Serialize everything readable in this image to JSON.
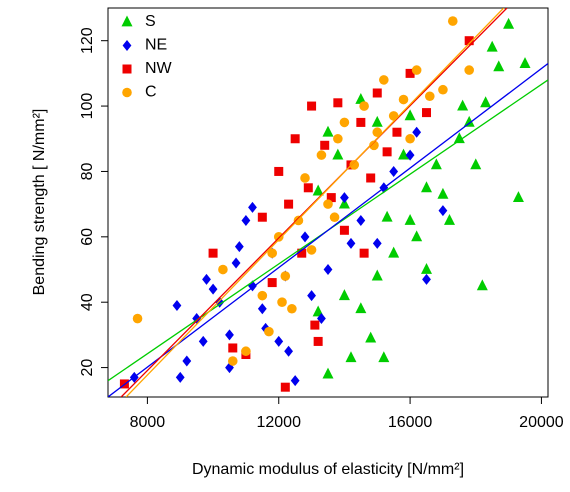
{
  "chart_data": {
    "type": "scatter",
    "x_label": "Dynamic modulus of elasticity [N/mm²]",
    "y_label": "Bending strength [ N/mm²]",
    "xlim": [
      6800,
      20200
    ],
    "ylim": [
      11,
      130
    ],
    "xticks": [
      8000,
      12000,
      16000,
      20000
    ],
    "yticks": [
      20,
      40,
      60,
      80,
      100,
      120
    ],
    "legend": "top-left",
    "series": [
      {
        "name": "S",
        "color": "#00cc00",
        "marker": "triangle",
        "x": [
          13500,
          14200,
          15200,
          18200,
          19300,
          19000,
          19500,
          18500,
          17800,
          17500,
          16500,
          16000,
          15500,
          15000,
          14500,
          14000,
          13200,
          14800,
          16200,
          17000,
          16800,
          15800,
          15000,
          14500,
          13500,
          13200,
          14000,
          16500,
          17200,
          18000,
          18300,
          18700,
          15300,
          16000,
          13800,
          17600
        ],
        "y": [
          18,
          23,
          23,
          45,
          72,
          125,
          113,
          118,
          95,
          90,
          75,
          65,
          55,
          48,
          38,
          42,
          37,
          29,
          60,
          73,
          82,
          85,
          95,
          102,
          92,
          74,
          70,
          50,
          65,
          82,
          101,
          112,
          66,
          97,
          85,
          100
        ],
        "fit": {
          "x": [
            6800,
            20200
          ],
          "y": [
            16,
            108
          ]
        }
      },
      {
        "name": "NE",
        "color": "#0000ee",
        "marker": "diamond",
        "x": [
          7600,
          8900,
          9000,
          9200,
          9500,
          9800,
          10200,
          10500,
          10500,
          11000,
          10800,
          11200,
          11500,
          11800,
          12000,
          12300,
          12500,
          12800,
          13000,
          13500,
          14000,
          14500,
          15000,
          15500,
          16000,
          16500,
          17000,
          9700,
          10700,
          11600,
          12200,
          13300,
          14200,
          15200,
          16200,
          11200,
          10000
        ],
        "y": [
          17,
          39,
          17,
          22,
          35,
          47,
          40,
          30,
          20,
          65,
          57,
          45,
          38,
          55,
          28,
          25,
          16,
          60,
          42,
          50,
          72,
          65,
          58,
          80,
          85,
          47,
          68,
          28,
          52,
          32,
          48,
          35,
          58,
          75,
          92,
          69,
          44
        ],
        "fit": {
          "x": [
            6800,
            20200
          ],
          "y": [
            11,
            113
          ]
        }
      },
      {
        "name": "NW",
        "color": "#ee0000",
        "marker": "square",
        "x": [
          7300,
          10000,
          10600,
          11500,
          11800,
          12000,
          12200,
          12500,
          12700,
          13000,
          13200,
          13400,
          13600,
          13800,
          14000,
          14200,
          14500,
          14800,
          15000,
          15300,
          15600,
          16000,
          16500,
          17800,
          12300,
          13100,
          11000,
          14600,
          12900
        ],
        "y": [
          15,
          55,
          26,
          66,
          46,
          80,
          14,
          90,
          55,
          100,
          28,
          88,
          72,
          101,
          62,
          82,
          95,
          78,
          104,
          86,
          92,
          110,
          98,
          120,
          70,
          33,
          24,
          55,
          75
        ],
        "fit": {
          "x": [
            7200,
            18950
          ],
          "y": [
            11,
            130
          ]
        }
      },
      {
        "name": "C",
        "color": "#ffa500",
        "marker": "circle",
        "x": [
          7700,
          10300,
          10600,
          11000,
          11500,
          11700,
          12000,
          12200,
          12400,
          12600,
          12800,
          13000,
          13300,
          13500,
          13800,
          14000,
          14300,
          14600,
          14900,
          15200,
          15500,
          15800,
          16200,
          16600,
          17000,
          17300,
          17800,
          12100,
          13700,
          15000,
          16000,
          11800
        ],
        "y": [
          35,
          50,
          22,
          25,
          42,
          31,
          60,
          48,
          38,
          65,
          78,
          56,
          85,
          70,
          90,
          95,
          82,
          100,
          88,
          108,
          97,
          102,
          111,
          103,
          105,
          126,
          111,
          40,
          66,
          92,
          90,
          55
        ],
        "fit": {
          "x": [
            7350,
            18850
          ],
          "y": [
            11,
            130
          ]
        }
      }
    ]
  }
}
